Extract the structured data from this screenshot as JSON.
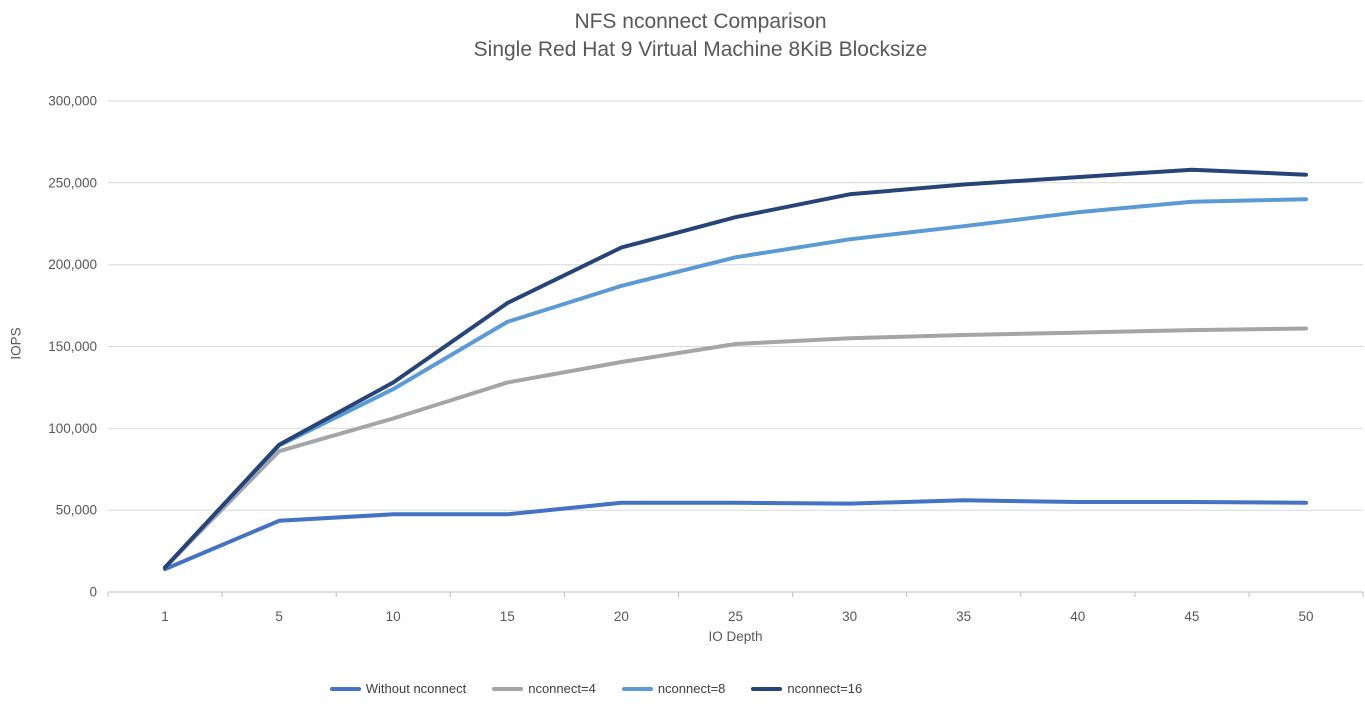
{
  "chart_data": {
    "type": "line",
    "title": "NFS nconnect Comparison",
    "subtitle": "Single Red Hat 9 Virtual Machine 8KiB Blocksize",
    "xlabel": "IO Depth",
    "ylabel": "IOPS",
    "categories": [
      "1",
      "5",
      "10",
      "15",
      "20",
      "25",
      "30",
      "35",
      "40",
      "45",
      "50"
    ],
    "ylim": [
      0,
      300000
    ],
    "ytick_step": 50000,
    "ytick_labels": [
      "0",
      "50,000",
      "100,000",
      "150,000",
      "200,000",
      "250,000",
      "300,000"
    ],
    "grid": "horizontal",
    "legend_position": "bottom",
    "colors": {
      "title_text": "#595959",
      "axis_text": "#595959",
      "legend_text": "#404040",
      "gridline": "#D9D9D9",
      "axis_line": "#BFBFBF"
    },
    "series": [
      {
        "name": "Without nconnect",
        "color": "#4472C4",
        "values": [
          14000,
          43500,
          47500,
          47500,
          54500,
          54500,
          54000,
          56000,
          55000,
          55000,
          54500
        ]
      },
      {
        "name": "nconnect=4",
        "color": "#A5A5A5",
        "values": [
          15000,
          86000,
          106000,
          128000,
          140500,
          151500,
          155000,
          157000,
          158500,
          160000,
          161000
        ]
      },
      {
        "name": "nconnect=8",
        "color": "#5B9BD5",
        "values": [
          15000,
          89500,
          124000,
          165000,
          187000,
          204500,
          215500,
          223500,
          232000,
          238500,
          240000
        ]
      },
      {
        "name": "nconnect=16",
        "color": "#264478",
        "values": [
          15000,
          90000,
          128000,
          176500,
          210500,
          229000,
          243000,
          249000,
          253500,
          258000,
          255000
        ]
      }
    ]
  }
}
